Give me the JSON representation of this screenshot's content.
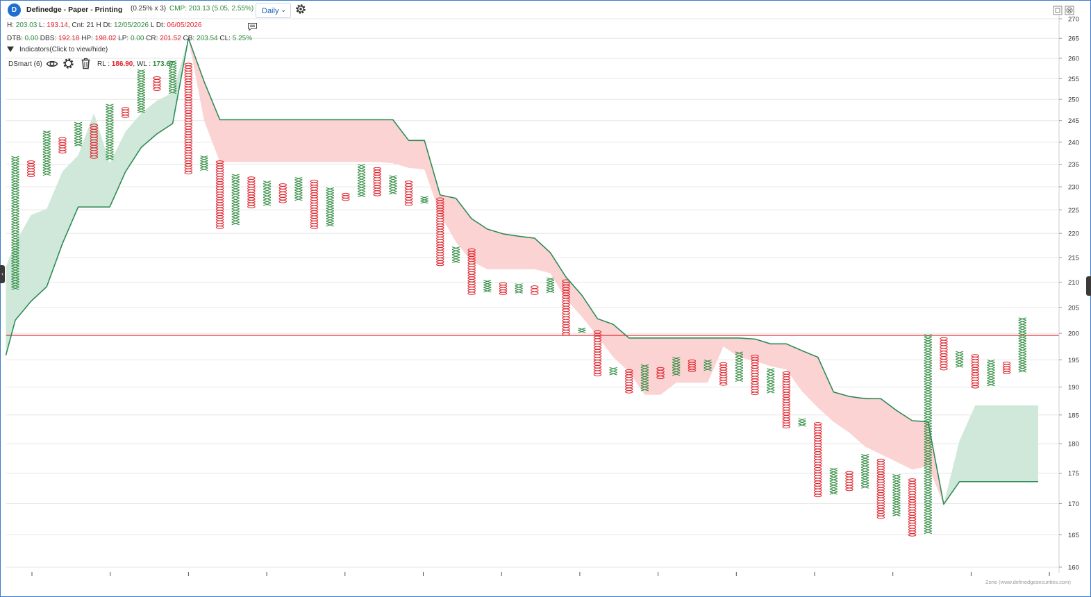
{
  "header": {
    "logo_letter": "D",
    "title": "Definedge - Paper - Printing",
    "params": "(0.25% x 3)",
    "cmp": "CMP: 203.13 (5.05, 2.55%)",
    "timeframe": "Daily",
    "settings_icon": "gear-icon"
  },
  "stats_row1": {
    "h_label": "H: ",
    "h": "203.03",
    "l_label": " L: ",
    "l": "193.14",
    "cnt_label": ", Cnt: 21 H Dt: ",
    "h_dt": "12/05/2026",
    "l_dt_label": " L Dt: ",
    "l_dt": "06/05/2026"
  },
  "stats_row2": {
    "dtb_label": "DTB: ",
    "dtb": "0.00",
    "dbs_label": " DBS: ",
    "dbs": "192.18",
    "hp_label": " HP: ",
    "hp": "198.02",
    "lp_label": " LP: ",
    "lp": "0.00",
    "cr_label": " CR: ",
    "cr": "201.52",
    "cb_label": " CB: ",
    "cb": "203.54",
    "cl_label": " CL: ",
    "cl": "5.25%"
  },
  "indicators": {
    "toggle_label": "Indicators(Click to view/hide)",
    "dsmart_label": "DSmart (6)",
    "rl_label": "RL : ",
    "rl": "186.90",
    "wl_label": ", WL : ",
    "wl": "173.67",
    "icons": [
      "eye-icon",
      "gear-icon",
      "trash-icon"
    ]
  },
  "credit": "Zone (www.definedgesecurities.com)",
  "colors": {
    "x_green": "#2e8b3e",
    "o_red": "#e0202a",
    "band_green": "#cfe8da",
    "band_red": "#fcd3d3",
    "line": "#2e8b57",
    "ref_line": "#e0202a",
    "grid": "#e6e6e6"
  },
  "chart_data": {
    "type": "point-and-figure",
    "box_size_pct": 0.25,
    "reversal": 3,
    "y_axis": {
      "ticks": [
        160,
        165,
        170,
        175,
        180,
        185,
        190,
        195,
        200,
        205,
        210,
        215,
        220,
        225,
        230,
        235,
        240,
        245,
        250,
        255,
        260,
        265,
        270
      ],
      "range": [
        160,
        270
      ],
      "scale": "log"
    },
    "reference_line": 199.6,
    "columns": [
      {
        "type": "X",
        "low": 208.5,
        "high": 236.8
      },
      {
        "type": "O",
        "low": 232.2,
        "high": 235.8
      },
      {
        "type": "X",
        "low": 232.5,
        "high": 242.6
      },
      {
        "type": "O",
        "low": 237.5,
        "high": 241.1
      },
      {
        "type": "X",
        "low": 239.1,
        "high": 244.6
      },
      {
        "type": "O",
        "low": 236.3,
        "high": 244.2
      },
      {
        "type": "X",
        "low": 236.0,
        "high": 248.9
      },
      {
        "type": "O",
        "low": 245.7,
        "high": 248.1
      },
      {
        "type": "X",
        "low": 246.8,
        "high": 257.2
      },
      {
        "type": "O",
        "low": 252.1,
        "high": 255.5
      },
      {
        "type": "X",
        "low": 251.4,
        "high": 259.4
      },
      {
        "type": "O",
        "low": 232.8,
        "high": 258.8
      },
      {
        "type": "X",
        "low": 233.6,
        "high": 236.9
      },
      {
        "type": "O",
        "low": 221.0,
        "high": 235.8
      },
      {
        "type": "X",
        "low": 221.8,
        "high": 232.8
      },
      {
        "type": "O",
        "low": 225.4,
        "high": 232.2
      },
      {
        "type": "X",
        "low": 225.9,
        "high": 231.3
      },
      {
        "type": "O",
        "low": 226.5,
        "high": 230.7
      },
      {
        "type": "X",
        "low": 227.0,
        "high": 232.1
      },
      {
        "type": "O",
        "low": 221.0,
        "high": 231.5
      },
      {
        "type": "X",
        "low": 221.5,
        "high": 229.8
      },
      {
        "type": "O",
        "low": 227.0,
        "high": 228.6
      },
      {
        "type": "X",
        "low": 227.8,
        "high": 235.0
      },
      {
        "type": "O",
        "low": 228.0,
        "high": 234.3
      },
      {
        "type": "X",
        "low": 228.4,
        "high": 232.5
      },
      {
        "type": "O",
        "low": 225.9,
        "high": 231.3
      },
      {
        "type": "X",
        "low": 226.4,
        "high": 227.9
      },
      {
        "type": "O",
        "low": 213.3,
        "high": 227.6
      },
      {
        "type": "X",
        "low": 213.9,
        "high": 217.2
      },
      {
        "type": "O",
        "low": 207.5,
        "high": 216.8
      },
      {
        "type": "X",
        "low": 208.0,
        "high": 210.4
      },
      {
        "type": "O",
        "low": 207.5,
        "high": 209.9
      },
      {
        "type": "X",
        "low": 207.8,
        "high": 209.7
      },
      {
        "type": "O",
        "low": 207.5,
        "high": 209.3
      },
      {
        "type": "X",
        "low": 207.9,
        "high": 210.9
      },
      {
        "type": "O",
        "low": 199.6,
        "high": 210.5
      },
      {
        "type": "X",
        "low": 200.1,
        "high": 201.0
      },
      {
        "type": "O",
        "low": 192.0,
        "high": 200.5
      },
      {
        "type": "X",
        "low": 192.2,
        "high": 193.6
      },
      {
        "type": "O",
        "low": 188.9,
        "high": 193.2
      },
      {
        "type": "X",
        "low": 189.3,
        "high": 194.1
      },
      {
        "type": "O",
        "low": 191.5,
        "high": 193.6
      },
      {
        "type": "X",
        "low": 192.1,
        "high": 195.5
      },
      {
        "type": "O",
        "low": 192.8,
        "high": 195.0
      },
      {
        "type": "X",
        "low": 193.0,
        "high": 195.0
      },
      {
        "type": "O",
        "low": 190.3,
        "high": 194.5
      },
      {
        "type": "X",
        "low": 191.0,
        "high": 196.5
      },
      {
        "type": "O",
        "low": 188.6,
        "high": 195.9
      },
      {
        "type": "X",
        "low": 188.9,
        "high": 193.4
      },
      {
        "type": "O",
        "low": 182.7,
        "high": 192.8
      },
      {
        "type": "X",
        "low": 183.0,
        "high": 184.4
      },
      {
        "type": "O",
        "low": 171.1,
        "high": 183.7
      },
      {
        "type": "X",
        "low": 171.5,
        "high": 175.9
      },
      {
        "type": "O",
        "low": 172.1,
        "high": 175.3
      },
      {
        "type": "X",
        "low": 172.5,
        "high": 178.2
      },
      {
        "type": "O",
        "low": 167.6,
        "high": 177.4
      },
      {
        "type": "X",
        "low": 168.0,
        "high": 174.8
      },
      {
        "type": "O",
        "low": 164.8,
        "high": 174.1
      },
      {
        "type": "X",
        "low": 165.2,
        "high": 199.8
      },
      {
        "type": "O",
        "low": 193.1,
        "high": 199.2
      },
      {
        "type": "X",
        "low": 193.6,
        "high": 196.6
      },
      {
        "type": "O",
        "low": 189.8,
        "high": 196.0
      },
      {
        "type": "X",
        "low": 190.2,
        "high": 195.0
      },
      {
        "type": "O",
        "low": 192.4,
        "high": 194.6
      },
      {
        "type": "X",
        "low": 192.7,
        "high": 203.0
      }
    ],
    "dsmart": {
      "line": [
        {
          "c": -0.6,
          "v": 195.8
        },
        {
          "c": 0,
          "v": 202.5
        },
        {
          "c": 1,
          "v": 206.2
        },
        {
          "c": 2,
          "v": 209.1
        },
        {
          "c": 3,
          "v": 217.9
        },
        {
          "c": 4,
          "v": 225.6
        },
        {
          "c": 5,
          "v": 225.6
        },
        {
          "c": 6,
          "v": 225.6
        },
        {
          "c": 7,
          "v": 233.3
        },
        {
          "c": 8,
          "v": 238.8
        },
        {
          "c": 9,
          "v": 241.9
        },
        {
          "c": 10,
          "v": 244.3
        },
        {
          "c": 11,
          "v": 265.0
        },
        {
          "c": 12,
          "v": 254.3
        },
        {
          "c": 13,
          "v": 245.2
        },
        {
          "c": 14,
          "v": 245.2
        },
        {
          "c": 15,
          "v": 245.2
        },
        {
          "c": 16,
          "v": 245.2
        },
        {
          "c": 17,
          "v": 245.2
        },
        {
          "c": 18,
          "v": 245.2
        },
        {
          "c": 19,
          "v": 245.2
        },
        {
          "c": 20,
          "v": 245.2
        },
        {
          "c": 21,
          "v": 245.2
        },
        {
          "c": 22,
          "v": 245.2
        },
        {
          "c": 23,
          "v": 245.2
        },
        {
          "c": 24,
          "v": 245.2
        },
        {
          "c": 25,
          "v": 240.4
        },
        {
          "c": 26,
          "v": 240.4
        },
        {
          "c": 27,
          "v": 228.2
        },
        {
          "c": 28,
          "v": 227.5
        },
        {
          "c": 29,
          "v": 223.1
        },
        {
          "c": 30,
          "v": 220.9
        },
        {
          "c": 31,
          "v": 219.9
        },
        {
          "c": 32,
          "v": 219.4
        },
        {
          "c": 33,
          "v": 219.0
        },
        {
          "c": 34,
          "v": 216.0
        },
        {
          "c": 35,
          "v": 211.0
        },
        {
          "c": 36,
          "v": 207.4
        },
        {
          "c": 37,
          "v": 202.8
        },
        {
          "c": 38,
          "v": 201.7
        },
        {
          "c": 39,
          "v": 199.1
        },
        {
          "c": 40,
          "v": 199.1
        },
        {
          "c": 41,
          "v": 199.1
        },
        {
          "c": 42,
          "v": 199.1
        },
        {
          "c": 43,
          "v": 199.1
        },
        {
          "c": 44,
          "v": 199.1
        },
        {
          "c": 45,
          "v": 199.1
        },
        {
          "c": 46,
          "v": 199.1
        },
        {
          "c": 47,
          "v": 198.9
        },
        {
          "c": 48,
          "v": 198.0
        },
        {
          "c": 49,
          "v": 198.0
        },
        {
          "c": 50,
          "v": 196.7
        },
        {
          "c": 51,
          "v": 195.5
        },
        {
          "c": 52,
          "v": 189.1
        },
        {
          "c": 53,
          "v": 188.3
        },
        {
          "c": 54,
          "v": 187.9
        },
        {
          "c": 55,
          "v": 187.9
        },
        {
          "c": 56,
          "v": 185.8
        },
        {
          "c": 57,
          "v": 184.0
        },
        {
          "c": 58,
          "v": 183.8
        },
        {
          "c": 59,
          "v": 169.9
        },
        {
          "c": 60,
          "v": 173.6
        },
        {
          "c": 61,
          "v": 173.6
        },
        {
          "c": 62,
          "v": 173.6
        },
        {
          "c": 63,
          "v": 173.6
        },
        {
          "c": 64,
          "v": 173.6
        },
        {
          "c": 65,
          "v": 173.6
        }
      ],
      "bands": [
        {
          "color": "green",
          "upper": [
            {
              "c": -0.6,
              "v": 213.0
            },
            {
              "c": 0,
              "v": 218.0
            },
            {
              "c": 1,
              "v": 223.9
            },
            {
              "c": 2,
              "v": 225.2
            },
            {
              "c": 3,
              "v": 233.4
            },
            {
              "c": 4,
              "v": 237.0
            },
            {
              "c": 5,
              "v": 246.7
            },
            {
              "c": 6,
              "v": 235.3
            },
            {
              "c": 7,
              "v": 242.4
            },
            {
              "c": 8,
              "v": 246.7
            },
            {
              "c": 9,
              "v": 249.7
            },
            {
              "c": 10,
              "v": 251.6
            },
            {
              "c": 11,
              "v": 265.0
            }
          ],
          "lower": [
            {
              "c": -0.6,
              "v": 195.8
            },
            {
              "c": 0,
              "v": 202.5
            },
            {
              "c": 1,
              "v": 206.2
            },
            {
              "c": 2,
              "v": 209.1
            },
            {
              "c": 3,
              "v": 217.9
            },
            {
              "c": 4,
              "v": 225.6
            },
            {
              "c": 5,
              "v": 225.6
            },
            {
              "c": 6,
              "v": 225.6
            },
            {
              "c": 7,
              "v": 233.3
            },
            {
              "c": 8,
              "v": 238.8
            },
            {
              "c": 9,
              "v": 241.9
            },
            {
              "c": 10,
              "v": 244.3
            },
            {
              "c": 11,
              "v": 265.0
            }
          ]
        },
        {
          "color": "red",
          "upper": [
            {
              "c": 11,
              "v": 265.0
            },
            {
              "c": 12,
              "v": 254.3
            },
            {
              "c": 13,
              "v": 245.2
            },
            {
              "c": 24,
              "v": 245.2
            },
            {
              "c": 25,
              "v": 240.4
            },
            {
              "c": 26,
              "v": 240.4
            },
            {
              "c": 27,
              "v": 228.2
            },
            {
              "c": 28,
              "v": 227.5
            },
            {
              "c": 29,
              "v": 223.1
            },
            {
              "c": 30,
              "v": 220.9
            },
            {
              "c": 31,
              "v": 219.9
            },
            {
              "c": 32,
              "v": 219.4
            },
            {
              "c": 33,
              "v": 219.0
            },
            {
              "c": 34,
              "v": 216.0
            },
            {
              "c": 35,
              "v": 211.0
            },
            {
              "c": 36,
              "v": 207.4
            },
            {
              "c": 37,
              "v": 202.8
            },
            {
              "c": 38,
              "v": 201.7
            },
            {
              "c": 39,
              "v": 199.1
            },
            {
              "c": 46,
              "v": 199.1
            },
            {
              "c": 47,
              "v": 198.9
            },
            {
              "c": 48,
              "v": 198.0
            },
            {
              "c": 49,
              "v": 198.0
            },
            {
              "c": 50,
              "v": 196.7
            },
            {
              "c": 51,
              "v": 195.5
            },
            {
              "c": 52,
              "v": 189.1
            },
            {
              "c": 53,
              "v": 188.3
            },
            {
              "c": 55,
              "v": 187.9
            },
            {
              "c": 56,
              "v": 185.8
            },
            {
              "c": 57,
              "v": 184.0
            },
            {
              "c": 58,
              "v": 183.8
            },
            {
              "c": 59,
              "v": 169.9
            }
          ],
          "lower": [
            {
              "c": 11,
              "v": 265.0
            },
            {
              "c": 12,
              "v": 245.0
            },
            {
              "c": 13,
              "v": 235.5
            },
            {
              "c": 23,
              "v": 235.5
            },
            {
              "c": 24,
              "v": 235.2
            },
            {
              "c": 25,
              "v": 234.2
            },
            {
              "c": 26,
              "v": 233.8
            },
            {
              "c": 27,
              "v": 224.0
            },
            {
              "c": 28,
              "v": 218.2
            },
            {
              "c": 29,
              "v": 214.2
            },
            {
              "c": 30,
              "v": 212.6
            },
            {
              "c": 31,
              "v": 212.6
            },
            {
              "c": 32,
              "v": 212.6
            },
            {
              "c": 33,
              "v": 212.6
            },
            {
              "c": 34,
              "v": 211.8
            },
            {
              "c": 35,
              "v": 206.6
            },
            {
              "c": 36,
              "v": 203.2
            },
            {
              "c": 37,
              "v": 199.4
            },
            {
              "c": 38,
              "v": 195.5
            },
            {
              "c": 39,
              "v": 192.8
            },
            {
              "c": 40,
              "v": 188.6
            },
            {
              "c": 41,
              "v": 188.6
            },
            {
              "c": 42,
              "v": 190.8
            },
            {
              "c": 43,
              "v": 190.8
            },
            {
              "c": 44,
              "v": 190.8
            },
            {
              "c": 45,
              "v": 197.5
            },
            {
              "c": 46,
              "v": 195.5
            },
            {
              "c": 47,
              "v": 194.8
            },
            {
              "c": 48,
              "v": 193.8
            },
            {
              "c": 49,
              "v": 193.2
            },
            {
              "c": 50,
              "v": 189.2
            },
            {
              "c": 51,
              "v": 186.3
            },
            {
              "c": 52,
              "v": 183.8
            },
            {
              "c": 53,
              "v": 181.9
            },
            {
              "c": 54,
              "v": 179.5
            },
            {
              "c": 55,
              "v": 178.2
            },
            {
              "c": 56,
              "v": 176.9
            },
            {
              "c": 57,
              "v": 175.6
            },
            {
              "c": 58,
              "v": 176.2
            },
            {
              "c": 59,
              "v": 169.9
            }
          ]
        },
        {
          "color": "green",
          "upper": [
            {
              "c": 59,
              "v": 169.9
            },
            {
              "c": 60,
              "v": 180.5
            },
            {
              "c": 61,
              "v": 186.7
            },
            {
              "c": 65,
              "v": 186.7
            }
          ],
          "lower": [
            {
              "c": 59,
              "v": 169.9
            },
            {
              "c": 60,
              "v": 173.6
            },
            {
              "c": 65,
              "v": 173.6
            }
          ]
        }
      ]
    }
  }
}
